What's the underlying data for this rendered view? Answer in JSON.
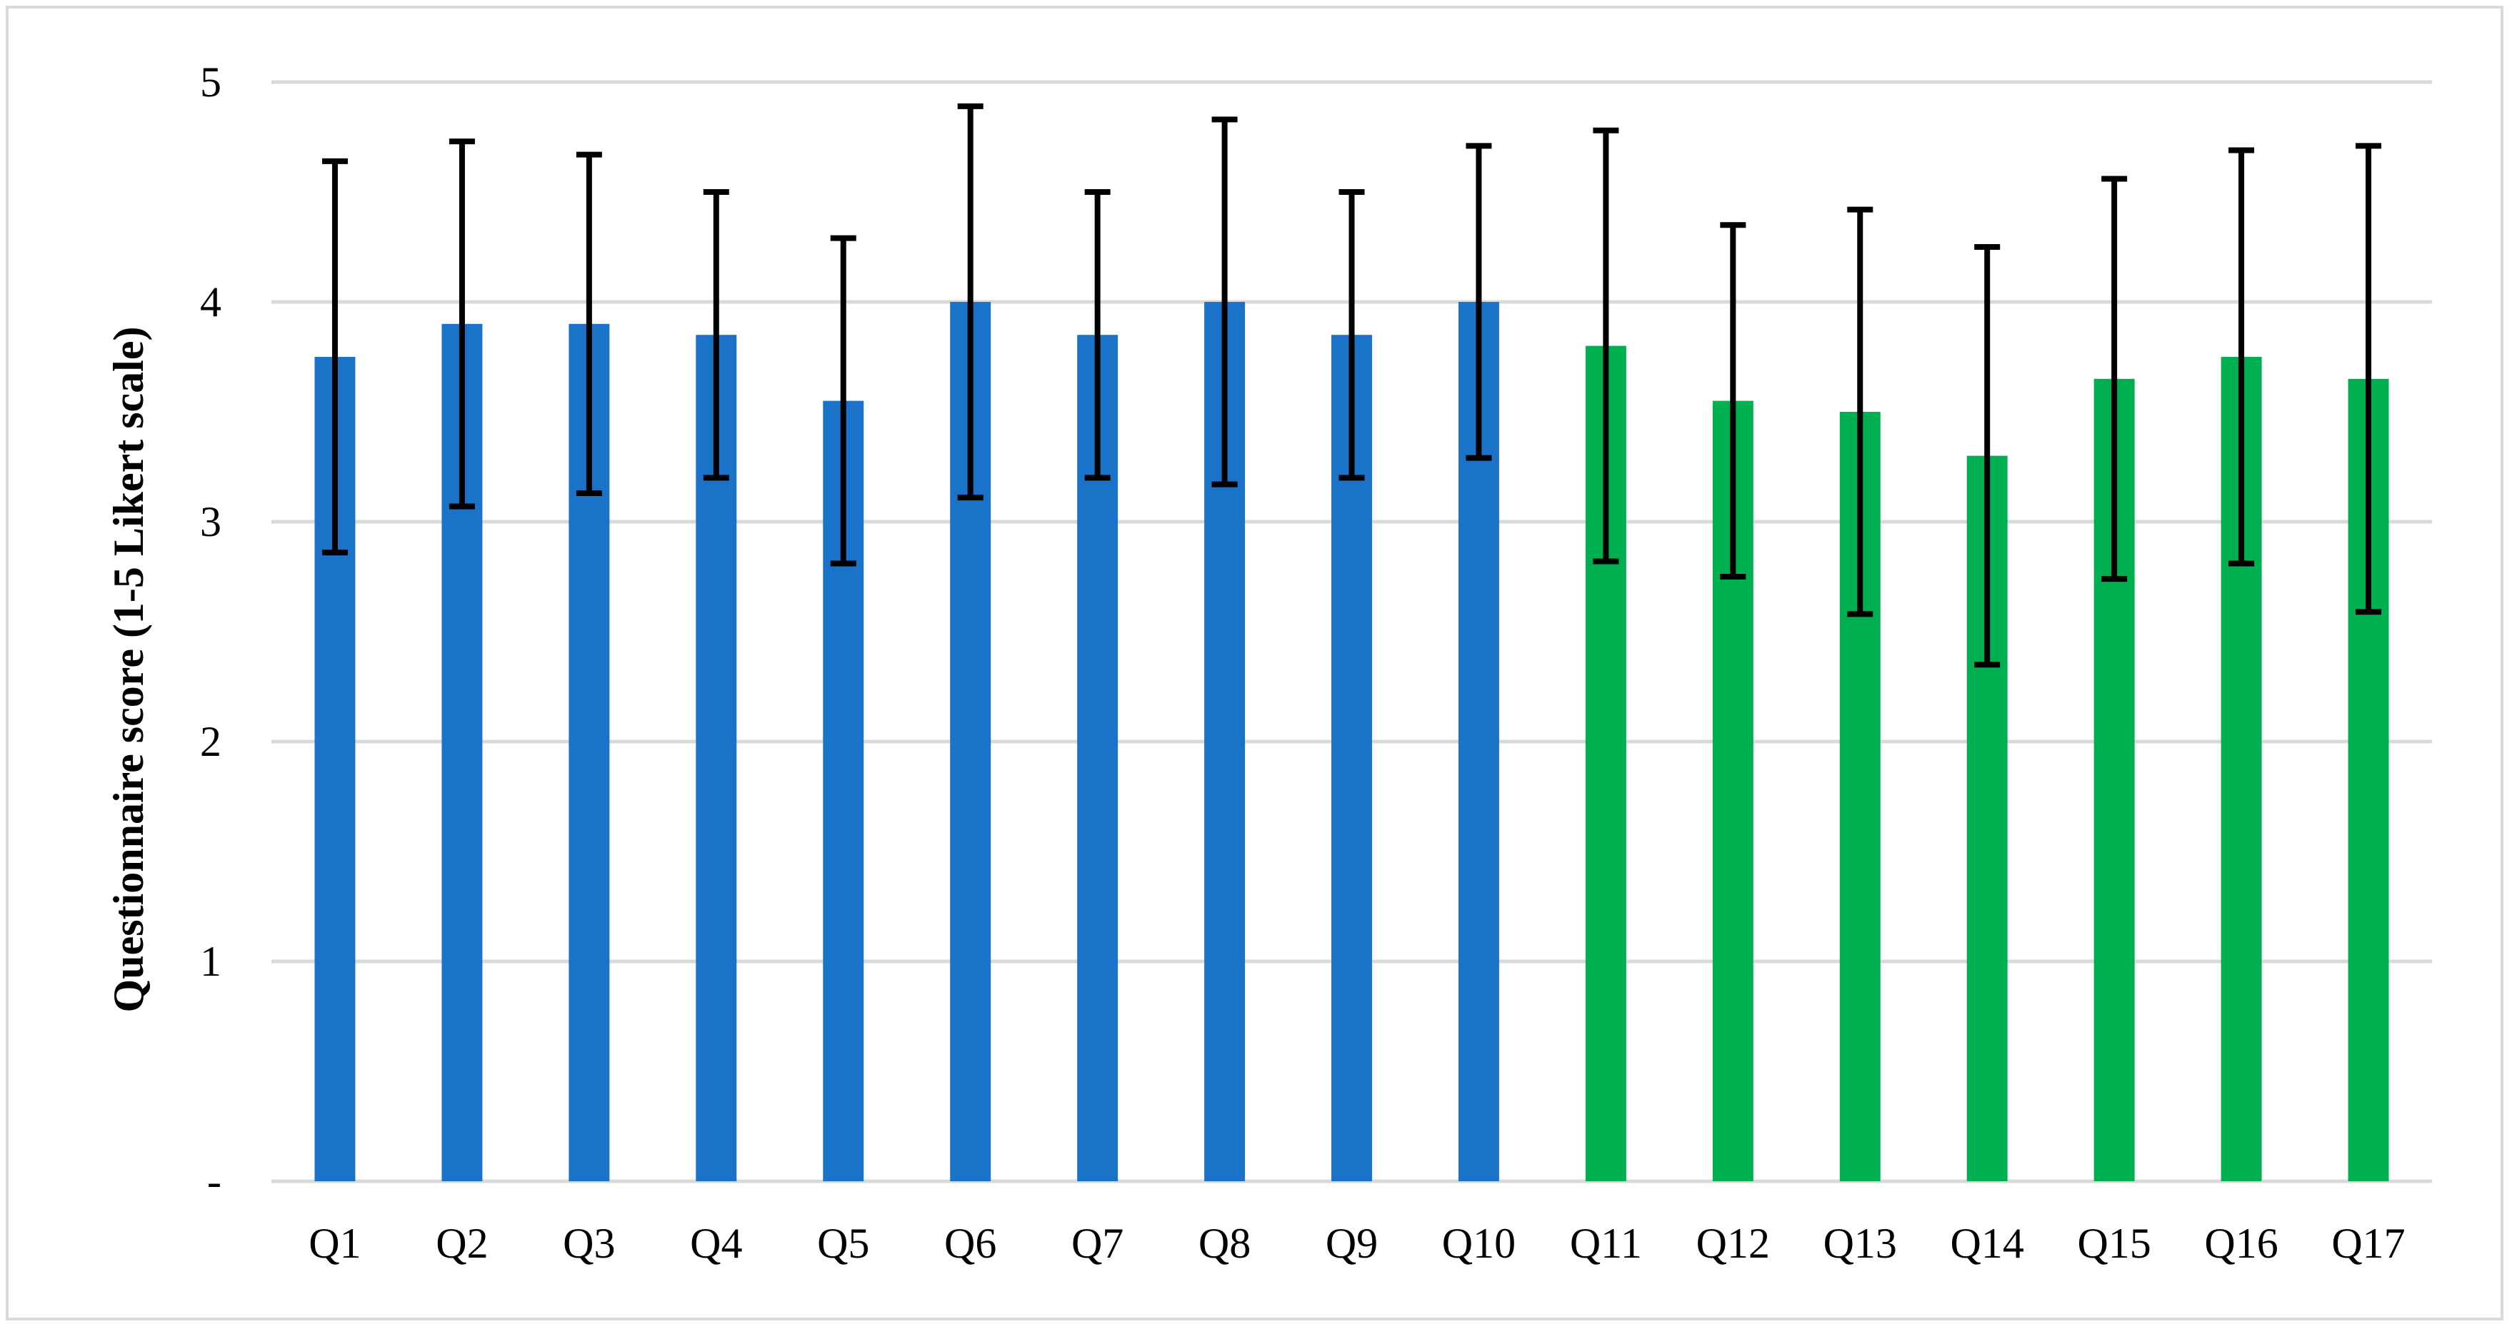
{
  "chart_data": {
    "type": "bar",
    "title": "",
    "xlabel": "",
    "ylabel": "Questionnaire score (1-5 Likert scale)",
    "ylim": [
      0,
      5
    ],
    "yticks": [
      0,
      1,
      2,
      3,
      4,
      5
    ],
    "ytick_labels": [
      "-",
      "1",
      "2",
      "3",
      "4",
      "5"
    ],
    "grid": true,
    "legend": "none",
    "categories": [
      "Q1",
      "Q2",
      "Q3",
      "Q4",
      "Q5",
      "Q6",
      "Q7",
      "Q8",
      "Q9",
      "Q10",
      "Q11",
      "Q12",
      "Q13",
      "Q14",
      "Q15",
      "Q16",
      "Q17"
    ],
    "values": [
      3.75,
      3.9,
      3.9,
      3.85,
      3.55,
      4.0,
      3.85,
      4.0,
      3.85,
      4.0,
      3.8,
      3.55,
      3.5,
      3.3,
      3.65,
      3.75,
      3.65
    ],
    "error_low": [
      2.86,
      3.07,
      3.13,
      3.2,
      2.81,
      3.11,
      3.2,
      3.17,
      3.2,
      3.29,
      2.82,
      2.75,
      2.58,
      2.35,
      2.74,
      2.81,
      2.59
    ],
    "error_high": [
      4.64,
      4.73,
      4.67,
      4.5,
      4.29,
      4.89,
      4.5,
      4.83,
      4.5,
      4.71,
      4.78,
      4.35,
      4.42,
      4.25,
      4.56,
      4.69,
      4.71
    ],
    "bar_colors": [
      "#1a73c9",
      "#1a73c9",
      "#1a73c9",
      "#1a73c9",
      "#1a73c9",
      "#1a73c9",
      "#1a73c9",
      "#1a73c9",
      "#1a73c9",
      "#1a73c9",
      "#00b050",
      "#00b050",
      "#00b050",
      "#00b050",
      "#00b050",
      "#00b050",
      "#00b050"
    ],
    "gridline_color": "#d9d9d9",
    "error_bar_color": "#000000"
  }
}
